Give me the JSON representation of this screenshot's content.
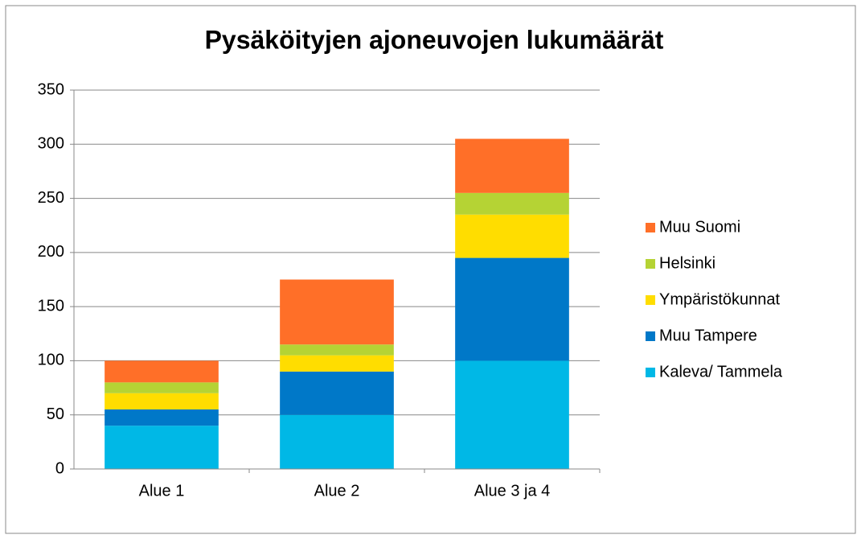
{
  "chart_data": {
    "type": "stacked_bar",
    "title": "Pysäköityjen ajoneuvojen lukumäärät",
    "categories": [
      "Alue 1",
      "Alue 2",
      "Alue 3 ja 4"
    ],
    "series": [
      {
        "name": "Kaleva/ Tammela",
        "color": "#00b8e6",
        "values": [
          40,
          50,
          100
        ]
      },
      {
        "name": "Muu Tampere",
        "color": "#0078c8",
        "values": [
          15,
          40,
          95
        ]
      },
      {
        "name": "Ympäristökunnat",
        "color": "#ffdd00",
        "values": [
          15,
          15,
          40
        ]
      },
      {
        "name": "Helsinki",
        "color": "#b5d334",
        "values": [
          10,
          10,
          20
        ]
      },
      {
        "name": "Muu Suomi",
        "color": "#ff6f28",
        "values": [
          20,
          60,
          50
        ]
      }
    ],
    "ylim": [
      0,
      350
    ],
    "yticks": [
      0,
      50,
      100,
      150,
      200,
      250,
      300,
      350
    ],
    "grid": true,
    "legend": "right"
  }
}
